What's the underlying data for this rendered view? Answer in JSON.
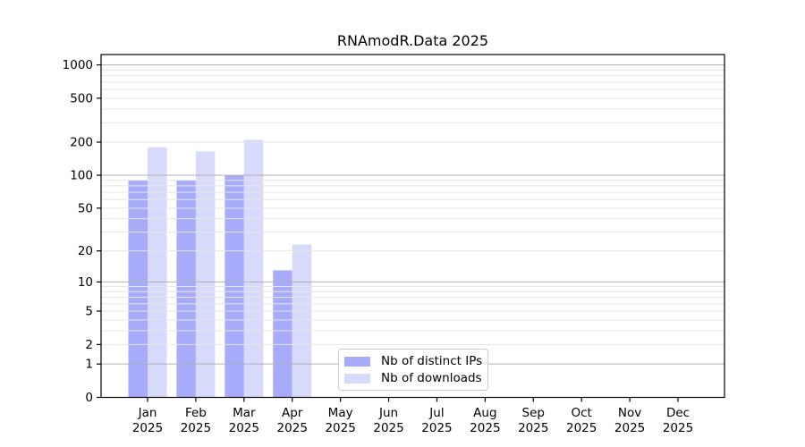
{
  "chart_data": {
    "type": "bar",
    "title": "RNAmodR.Data 2025",
    "categories": [
      "Jan 2025",
      "Feb 2025",
      "Mar 2025",
      "Apr 2025",
      "May 2025",
      "Jun 2025",
      "Jul 2025",
      "Aug 2025",
      "Sep 2025",
      "Oct 2025",
      "Nov 2025",
      "Dec 2025"
    ],
    "series": [
      {
        "name": "Nb of distinct IPs",
        "color": "#a8abfa",
        "values": [
          90,
          90,
          100,
          13,
          0,
          0,
          0,
          0,
          0,
          0,
          0,
          0
        ]
      },
      {
        "name": "Nb of downloads",
        "color": "#d7dafb",
        "values": [
          180,
          165,
          210,
          23,
          0,
          0,
          0,
          0,
          0,
          0,
          0,
          0
        ]
      }
    ],
    "y_axis": {
      "scale": "log10(value+1)",
      "ticks": [
        0,
        1,
        2,
        5,
        10,
        20,
        50,
        100,
        200,
        500,
        1000
      ],
      "ylim": [
        0,
        1240
      ],
      "major_gridlines": [
        1,
        10,
        100,
        1000
      ],
      "minor_gridlines": [
        2,
        3,
        4,
        5,
        6,
        7,
        8,
        9,
        20,
        30,
        40,
        50,
        60,
        70,
        80,
        90,
        200,
        300,
        400,
        500,
        600,
        700,
        800,
        900
      ]
    },
    "x_axis": {
      "label_format": "month over year, two lines"
    },
    "legend": {
      "position": "inside-bottom-center"
    },
    "colors": {
      "grid_major": "#b0b0b0",
      "grid_minor": "#e6e6e6",
      "spine": "#000000",
      "text": "#000000",
      "background": "#ffffff"
    }
  }
}
